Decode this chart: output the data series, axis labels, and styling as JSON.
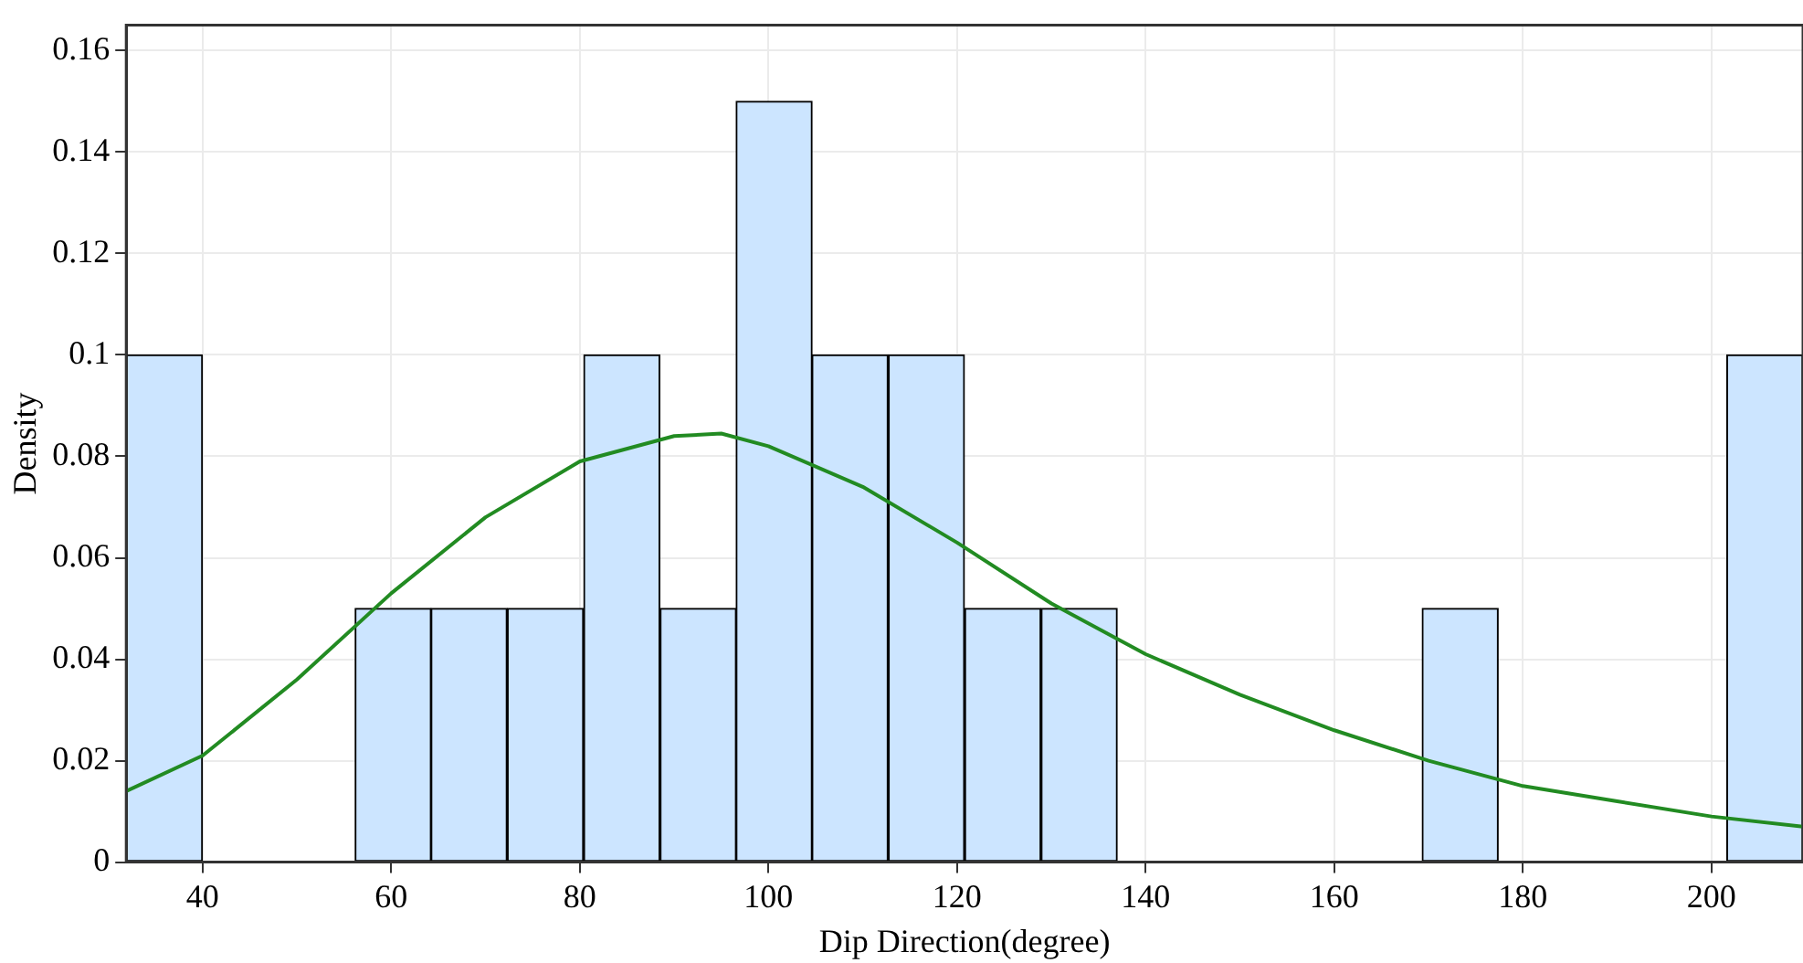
{
  "chart_data": {
    "type": "histogram",
    "xlabel": "Dip Direction(degree)",
    "ylabel": "Density",
    "bins": [
      31.9,
      40.0,
      48.1,
      56.2,
      64.2,
      72.3,
      80.4,
      88.5,
      96.6,
      104.6,
      112.7,
      120.8,
      128.9,
      137.0,
      145.0,
      153.1,
      161.2,
      169.3,
      177.4,
      185.4,
      193.5,
      201.6,
      209.7
    ],
    "values": [
      0.1,
      0,
      0,
      0.05,
      0.05,
      0.05,
      0.1,
      0.05,
      0.15,
      0.1,
      0.1,
      0.05,
      0.05,
      0,
      0,
      0,
      0,
      0.05,
      0,
      0,
      0,
      0.1
    ],
    "color": "#cce5ff",
    "series": [
      {
        "type": "line",
        "color": "#228b22",
        "x": [
          31.9,
          40,
          50,
          60,
          70,
          80,
          90,
          95,
          100,
          110,
          120,
          130,
          140,
          150,
          160,
          170,
          180,
          190,
          200,
          209.7
        ],
        "values": [
          0.014,
          0.021,
          0.036,
          0.053,
          0.068,
          0.079,
          0.084,
          0.0845,
          0.082,
          0.074,
          0.063,
          0.051,
          0.041,
          0.033,
          0.026,
          0.02,
          0.015,
          0.012,
          0.009,
          0.007
        ]
      }
    ],
    "xlim": [
      31.9,
      209.7
    ],
    "xticks": [
      40,
      60,
      80,
      100,
      120,
      140,
      160,
      180,
      200
    ],
    "ylim": [
      0,
      0.165
    ],
    "yticks": [
      0,
      0.02,
      0.04,
      0.06,
      0.08,
      0.1,
      0.12,
      0.14,
      0.16
    ],
    "grid": true,
    "legend": false
  }
}
